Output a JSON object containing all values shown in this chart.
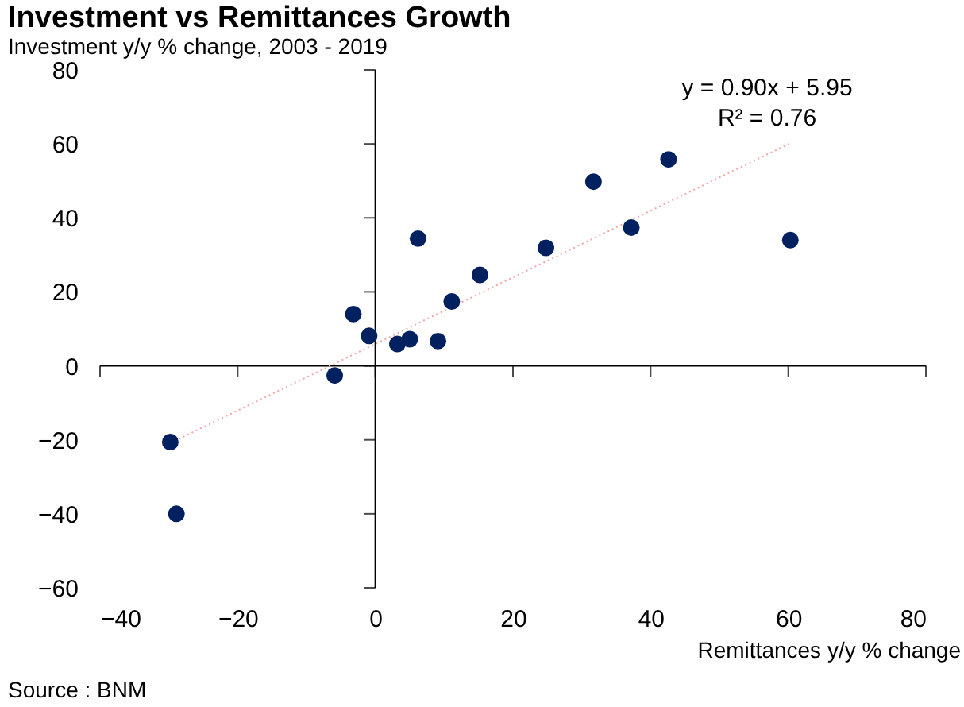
{
  "chart_data": {
    "type": "scatter",
    "title": "Investment vs Remittances Growth",
    "ylabel": "Investment y/y % change, 2003 - 2019",
    "xlabel": "Remittances y/y % change",
    "xlim": [
      -40,
      80
    ],
    "xticks": [
      -40,
      -20,
      0,
      20,
      40,
      60,
      80
    ],
    "ylim": [
      -60,
      80
    ],
    "yticks": [
      -60,
      -40,
      -20,
      0,
      20,
      40,
      60,
      80
    ],
    "marker": "circle",
    "series": [
      {
        "color": "#002060",
        "x": [
          -29.8,
          -28.9,
          -5.9,
          -3.2,
          -0.9,
          3.2,
          5.0,
          6.2,
          9.1,
          11.1,
          15.2,
          24.8,
          31.7,
          37.2,
          42.6,
          60.3
        ],
        "values": [
          -20.6,
          -40.0,
          -2.6,
          14.0,
          8.1,
          5.9,
          7.2,
          34.4,
          6.7,
          17.4,
          24.6,
          31.9,
          49.8,
          37.4,
          55.8,
          34.0
        ]
      },
      {
        "type": "line",
        "color": "#f4a6a6",
        "line_style": "dotted",
        "marker": "none",
        "x": [
          -29.8,
          60.3
        ],
        "values": [
          -20.9,
          60.2
        ]
      }
    ],
    "annotations": [
      "y = 0.90x + 5.95",
      "R² = 0.76",
      "Source : BNM"
    ]
  }
}
